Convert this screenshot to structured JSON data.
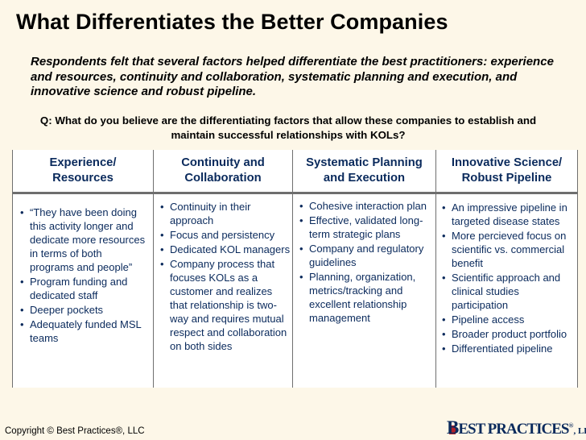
{
  "title": "What Differentiates the Better Companies",
  "subtitle": "Respondents felt that several factors helped differentiate the best practitioners: experience and resources, continuity and collaboration, systematic planning and execution, and innovative science and robust pipeline.",
  "question": "Q: What do you believe are the differentiating factors that allow these companies to establish and maintain successful relationships with KOLs?",
  "columns": [
    {
      "header": [
        "Experience/",
        "Resources"
      ],
      "items": [
        "“They have been doing this activity longer and dedicate more resources in terms of both programs and people”",
        "Program funding and dedicated staff",
        "Deeper pockets",
        "Adequately funded MSL teams"
      ]
    },
    {
      "header": [
        "Continuity and",
        "Collaboration"
      ],
      "items": [
        "Continuity in their approach",
        "Focus and persistency",
        "Dedicated KOL managers",
        "Company process that focuses KOLs as a customer and realizes that relationship is two-way and requires mutual respect and collaboration on both sides"
      ]
    },
    {
      "header": [
        "Systematic Planning",
        "and Execution"
      ],
      "items": [
        "Cohesive interaction plan",
        "Effective, validated long-term strategic plans",
        "Company and regulatory guidelines",
        "Planning, organization, metrics/tracking and excellent relationship management"
      ]
    },
    {
      "header": [
        "Innovative Science/",
        "Robust Pipeline"
      ],
      "items": [
        "An impressive pipeline in targeted disease states",
        "More percieved focus on scientific vs. commercial benefit",
        "Scientific approach and clinical studies participation",
        "Pipeline access",
        "Broader product portfolio",
        "Differentiated pipeline"
      ]
    }
  ],
  "footer": "Copyright ©  Best Practices®, LLC",
  "logo": {
    "b": "B",
    "rest": "EST PRACTICES",
    "reg": "®",
    "suffix": ", LLC"
  },
  "colors": {
    "background": "#FDF7E8",
    "text_dark_blue": "#0A2A5C",
    "logo_red": "#B0202A"
  }
}
